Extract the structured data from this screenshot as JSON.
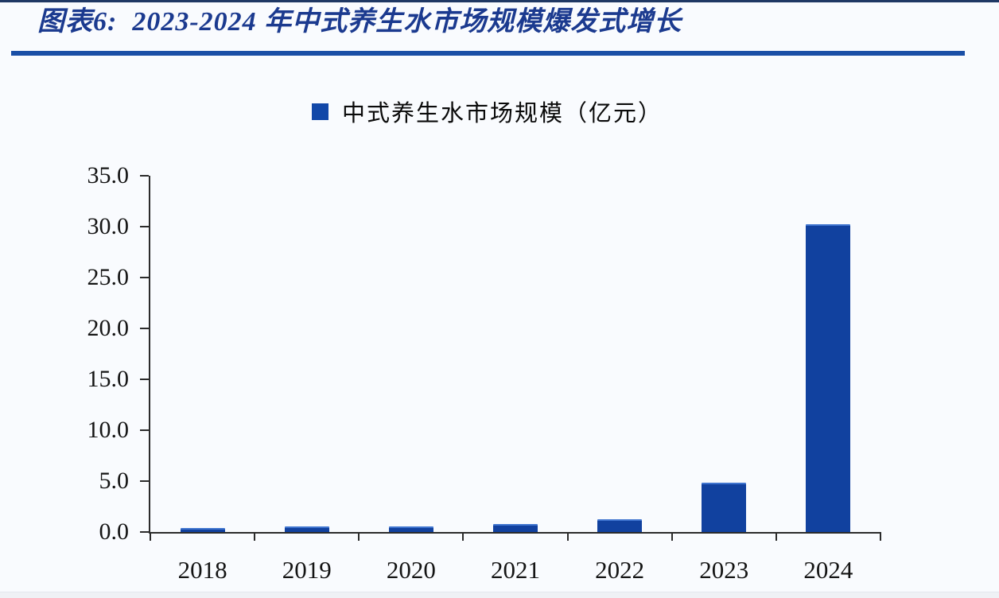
{
  "chart_data": {
    "type": "bar",
    "title": "图表6:  2023-2024 年中式养生水市场规模爆发式增长",
    "legend": [
      "中式养生水市场规模（亿元）"
    ],
    "categories": [
      "2018",
      "2019",
      "2020",
      "2021",
      "2022",
      "2023",
      "2024"
    ],
    "values": [
      0.2,
      0.4,
      0.4,
      0.6,
      1.1,
      4.7,
      30.1
    ],
    "xlabel": "",
    "ylabel": "",
    "ylim": [
      0,
      35
    ],
    "yticks": [
      35,
      30,
      25,
      20,
      15,
      10,
      5,
      0
    ],
    "ytick_labels": [
      "35.0",
      "30.0",
      "25.0",
      "20.0",
      "15.0",
      "10.0",
      "5.0",
      "0.0"
    ],
    "grid": "off",
    "legend_position": "top-center",
    "colors": {
      "bar": "#11419f",
      "bar_edge": "#3f74cf",
      "legend_swatch": "#1248a8",
      "title": "#1b3a8f",
      "divider": "#1a4fa6",
      "topline": "#1f3864",
      "axis": "#2b2b2b"
    }
  }
}
